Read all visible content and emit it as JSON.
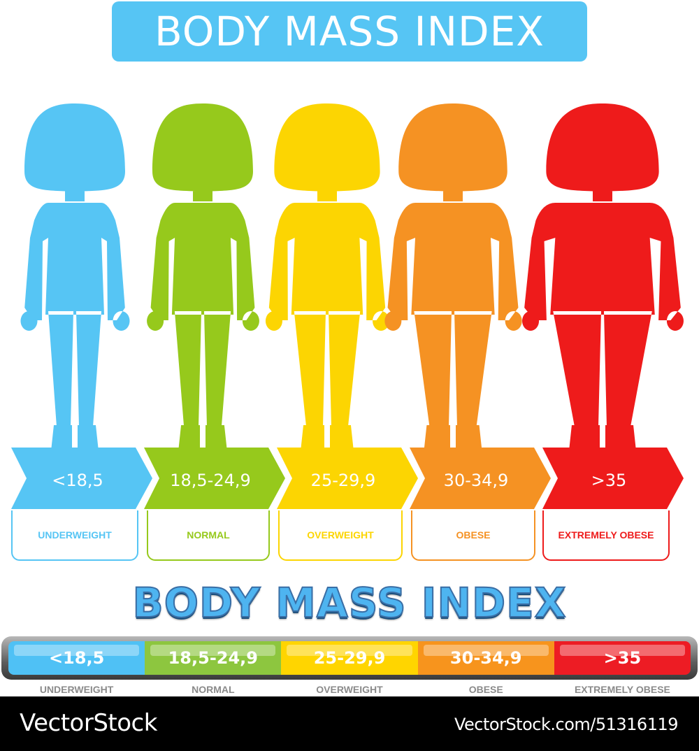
{
  "header": {
    "title": "BODY MASS INDEX"
  },
  "categories": [
    {
      "range": "<18,5",
      "label": "UNDERWEIGHT",
      "color": "#56c5f4"
    },
    {
      "range": "18,5-24,9",
      "label": "NORMAL",
      "color": "#96c91c"
    },
    {
      "range": "25-29,9",
      "label": "OVERWEIGHT",
      "color": "#fcd502"
    },
    {
      "range": "30-34,9",
      "label": "OBESE",
      "color": "#f59223"
    },
    {
      "range": ">35",
      "label": "EXTREMELY OBESE",
      "color": "#ee1b1b"
    }
  ],
  "scale": {
    "title": "BODY MASS INDEX",
    "segments": [
      {
        "range": "<18,5",
        "label": "UNDERWEIGHT",
        "color": "#4fc1f5"
      },
      {
        "range": "18,5-24,9",
        "label": "NORMAL",
        "color": "#8dc63f"
      },
      {
        "range": "25-29,9",
        "label": "OVERWEIGHT",
        "color": "#ffd500"
      },
      {
        "range": "30-34,9",
        "label": "OBESE",
        "color": "#f7941d"
      },
      {
        "range": ">35",
        "label": "EXTREMELY OBESE",
        "color": "#ed1c24"
      }
    ]
  },
  "icons": [
    "girl-silhouette-icon"
  ],
  "footer": {
    "brand": "VectorStock",
    "image_id": "VectorStock.com/51316119"
  }
}
